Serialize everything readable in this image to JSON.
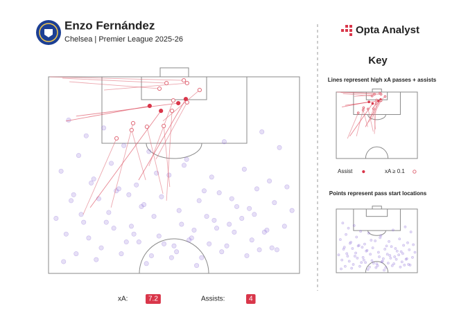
{
  "chart_data": {
    "type": "scatter",
    "title": "Enzo Fernández",
    "subtitle": "Chelsea | Premier League 2025-26",
    "brand": "Opta Analyst",
    "xlim": [
      0,
      100
    ],
    "ylim": [
      0,
      100
    ],
    "points": {
      "color": "#8b6fd6",
      "x": [
        8,
        15,
        22,
        30,
        12,
        25,
        40,
        55,
        70,
        85,
        92,
        5,
        18,
        35,
        48,
        62,
        78,
        88,
        10,
        20,
        28,
        38,
        45,
        52,
        60,
        68,
        75,
        82,
        90,
        95,
        3,
        14,
        24,
        33,
        42,
        58,
        66,
        72,
        80,
        86,
        7,
        16,
        26,
        36,
        44,
        50,
        56,
        64,
        74,
        84,
        94,
        11,
        21,
        31,
        41,
        51,
        61,
        71,
        81,
        91,
        6,
        19,
        29,
        39,
        49,
        59,
        69,
        79,
        89,
        13,
        23,
        34,
        46,
        57,
        67,
        77,
        87,
        97,
        9,
        27,
        37,
        53,
        63,
        73,
        83,
        17,
        32,
        43,
        54,
        65
      ],
      "y": [
        22,
        30,
        26,
        35,
        40,
        44,
        38,
        42,
        33,
        28,
        36,
        48,
        52,
        55,
        50,
        58,
        47,
        53,
        60,
        62,
        57,
        65,
        61,
        68,
        63,
        59,
        66,
        70,
        64,
        56,
        72,
        74,
        69,
        76,
        71,
        78,
        73,
        75,
        67,
        79,
        80,
        82,
        77,
        84,
        81,
        86,
        83,
        85,
        79,
        88,
        76,
        90,
        87,
        84,
        91,
        89,
        92,
        86,
        83,
        88,
        94,
        93,
        90,
        95,
        92,
        96,
        89,
        91,
        87,
        70,
        74,
        80,
        85,
        82,
        77,
        72,
        78,
        68,
        63,
        58,
        66,
        75,
        71,
        62,
        57,
        54,
        60,
        49,
        45,
        51
      ]
    },
    "series": [
      {
        "name": "Assist",
        "color": "#d9364a",
        "x": [
          11,
          6.9,
          35.9,
          16.6
        ],
        "y": [
          20,
          22.5,
          52.5,
          66.5
        ],
        "end_x": [
          51.7,
          40.3,
          54.7,
          44.8
        ],
        "end_y": [
          13.4,
          14.8,
          11.3,
          17.3
        ]
      },
      {
        "name": "xA ≥ 0.1",
        "color": "#e06a78",
        "x": [
          0.6,
          5.5,
          8.3,
          22.1,
          45.6,
          40,
          42.8,
          47,
          24.9,
          38.7,
          13.8,
          45.6,
          48.3
        ],
        "y": [
          0,
          0.7,
          2.5,
          6.7,
          22.5,
          45.4,
          41.9,
          63,
          66.5,
          52.5,
          70,
          59.5,
          56
        ],
        "end_x": [
          53.9,
          47,
          44.2,
          55.2,
          60.2,
          49.7,
          55.2,
          49.2,
          33.7,
          33.1,
          27.1,
          39.2,
          45.9
        ],
        "end_y": [
          1.8,
          3.2,
          6,
          3.2,
          6.7,
          12,
          13,
          17.3,
          23.6,
          27.1,
          31.3,
          25.4,
          25
        ]
      }
    ]
  },
  "key": {
    "title": "Key",
    "lines_caption": "Lines represent high xA passes + assists",
    "points_caption": "Points represent pass start locations"
  },
  "stats": [
    {
      "label": "xA:",
      "value": 7.2
    },
    {
      "label": "Assists:",
      "value": 4
    }
  ]
}
